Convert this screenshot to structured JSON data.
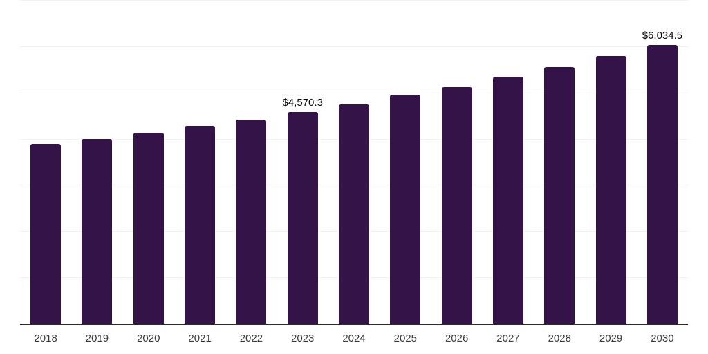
{
  "chart_data": {
    "type": "bar",
    "title": "",
    "xlabel": "",
    "ylabel": "",
    "categories": [
      "2018",
      "2019",
      "2020",
      "2021",
      "2022",
      "2023",
      "2024",
      "2025",
      "2026",
      "2027",
      "2028",
      "2029",
      "2030"
    ],
    "values": [
      3883.6,
      3998.7,
      4133.2,
      4271.5,
      4413.8,
      4570.3,
      4747.6,
      4945.2,
      5117.4,
      5339.9,
      5549.1,
      5787.8,
      6034.5
    ],
    "data_labels": [
      "",
      "",
      "",
      "",
      "",
      "$4,570.3",
      "",
      "",
      "",
      "",
      "",
      "",
      "$6,034.5"
    ],
    "ylim": [
      0,
      7000
    ],
    "gridline_step": 1000,
    "grid": "horizontal",
    "legend": "none"
  },
  "colors": {
    "background": "#FFFFFF",
    "bar": "#341349",
    "gridline": "#F1F1F3",
    "axis": "#2B2B2B",
    "tick_label": "#3C3C3C",
    "data_label": "#0A0A0A"
  }
}
